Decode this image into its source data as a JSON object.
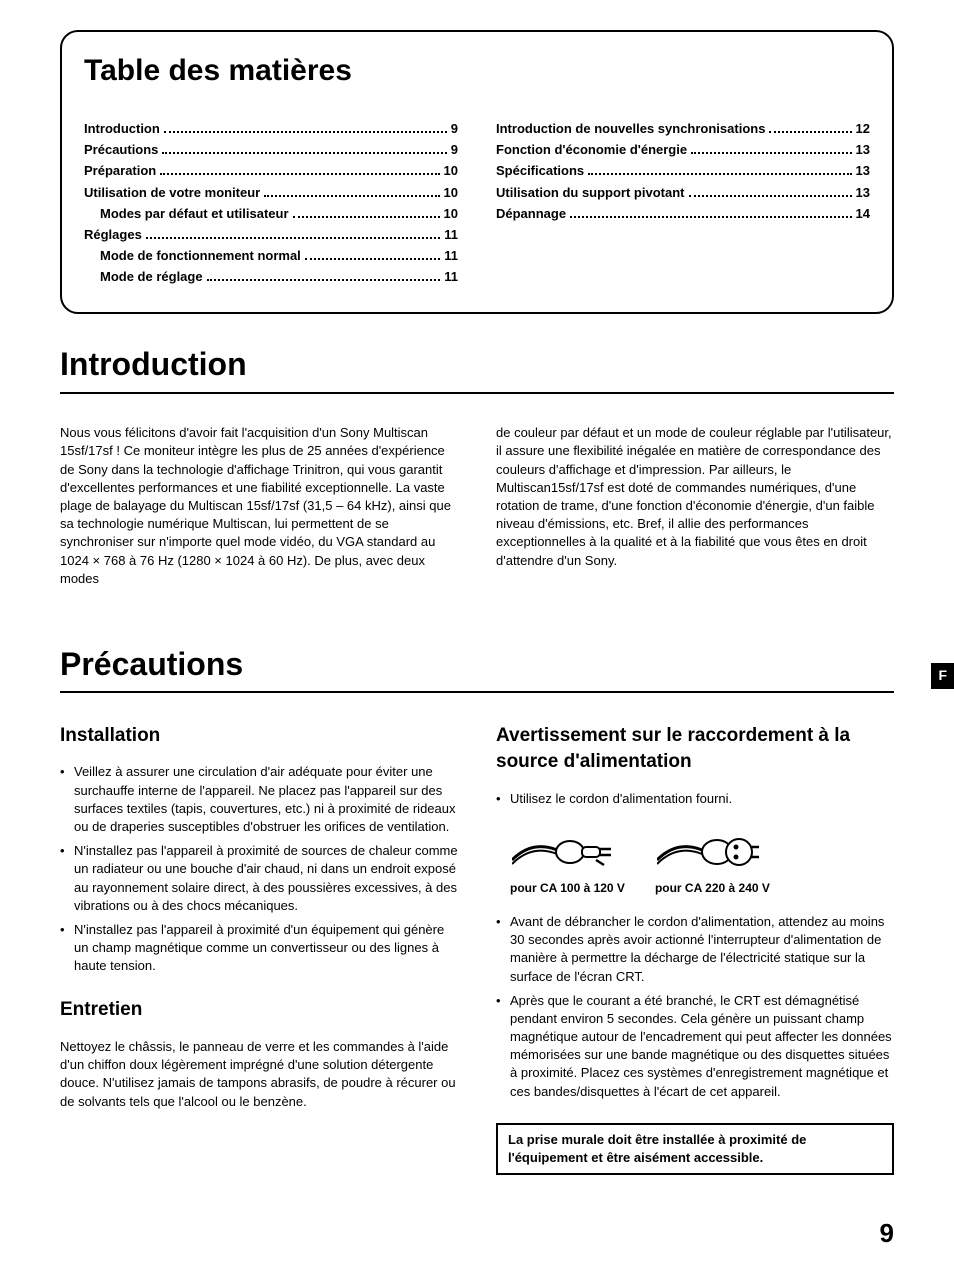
{
  "toc": {
    "title": "Table des matières",
    "left": [
      {
        "label": "Introduction",
        "page": "9",
        "indent": false
      },
      {
        "label": "Précautions",
        "page": "9",
        "indent": false
      },
      {
        "label": "Préparation",
        "page": "10",
        "indent": false
      },
      {
        "label": "Utilisation de votre moniteur",
        "page": "10",
        "indent": false
      },
      {
        "label": "Modes par défaut et utilisateur",
        "page": "10",
        "indent": true
      },
      {
        "label": "Réglages",
        "page": "11",
        "indent": false
      },
      {
        "label": "Mode de fonctionnement normal",
        "page": "11",
        "indent": true
      },
      {
        "label": "Mode de réglage",
        "page": "11",
        "indent": true
      }
    ],
    "right": [
      {
        "label": "Introduction de nouvelles synchronisations",
        "page": "12",
        "indent": false
      },
      {
        "label": "Fonction d'économie d'énergie",
        "page": "13",
        "indent": false
      },
      {
        "label": "Spécifications",
        "page": "13",
        "indent": false
      },
      {
        "label": "Utilisation du support pivotant",
        "page": "13",
        "indent": false
      },
      {
        "label": "Dépannage",
        "page": "14",
        "indent": false
      }
    ]
  },
  "introduction": {
    "heading": "Introduction",
    "left": "Nous vous félicitons d'avoir fait l'acquisition d'un Sony Multiscan 15sf/17sf ! Ce moniteur intègre les plus de 25 années d'expérience de Sony dans la technologie d'affichage Trinitron, qui vous garantit d'excellentes performances et une fiabilité exceptionnelle. La vaste plage de balayage du Multiscan 15sf/17sf (31,5 – 64 kHz), ainsi que sa technologie numérique Multiscan, lui permettent de se synchroniser sur n'importe quel mode vidéo, du VGA standard au 1024 × 768 à 76 Hz (1280 × 1024 à 60 Hz). De plus, avec deux modes",
    "right": "de couleur par défaut et un mode de couleur réglable par l'utilisateur, il assure une flexibilité inégalée en matière de correspondance des couleurs d'affichage et d'impression. Par ailleurs, le Multiscan15sf/17sf est doté de commandes numériques, d'une rotation de trame, d'une fonction d'économie d'énergie, d'un faible niveau d'émissions, etc. Bref, il allie des performances exceptionnelles à la qualité et à la fiabilité que vous êtes en droit d'attendre d'un Sony."
  },
  "precautions": {
    "heading": "Précautions",
    "tab": "F",
    "installation": {
      "heading": "Installation",
      "items": [
        "Veillez à assurer une circulation d'air adéquate pour éviter une surchauffe interne de l'appareil. Ne placez pas l'appareil sur des surfaces textiles (tapis, couvertures, etc.) ni à proximité de rideaux ou de draperies susceptibles d'obstruer les orifices de ventilation.",
        "N'installez pas l'appareil à proximité de sources de chaleur comme un radiateur ou une bouche d'air chaud, ni dans un endroit exposé au rayonnement solaire direct, à des poussières excessives, à des vibrations ou à des chocs mécaniques.",
        "N'installez pas l'appareil à proximité d'un équipement qui génère un champ magnétique comme un convertisseur ou des lignes à haute tension."
      ]
    },
    "entretien": {
      "heading": "Entretien",
      "body": "Nettoyez le châssis, le panneau de verre et les commandes à l'aide d'un chiffon doux légèrement imprégné d'une solution détergente douce. N'utilisez jamais de tampons abrasifs, de poudre à récurer ou de solvants tels que l'alcool ou le benzène."
    },
    "power": {
      "heading": "Avertissement sur le raccordement à la source d'alimentation",
      "item1": "Utilisez le cordon d'alimentation fourni.",
      "plug1_caption": "pour CA 100 à 120 V",
      "plug2_caption": "pour CA 220 à 240 V",
      "item2": "Avant de débrancher le cordon d'alimentation, attendez au moins 30 secondes après avoir actionné l'interrupteur d'alimentation de manière à permettre la décharge de l'électricité statique sur la surface de l'écran CRT.",
      "item3": "Après que le courant a été branché, le CRT est démagnétisé pendant environ 5 secondes. Cela génère un puissant champ magnétique autour de l'encadrement qui peut affecter les données mémorisées sur une bande magnétique ou des disquettes situées à proximité. Placez ces systèmes d'enregistrement magnétique et ces bandes/disquettes à l'écart de cet appareil.",
      "notice": "La prise murale doit être installée à proximité de l'équipement et être aisément accessible."
    }
  },
  "page_number": "9"
}
